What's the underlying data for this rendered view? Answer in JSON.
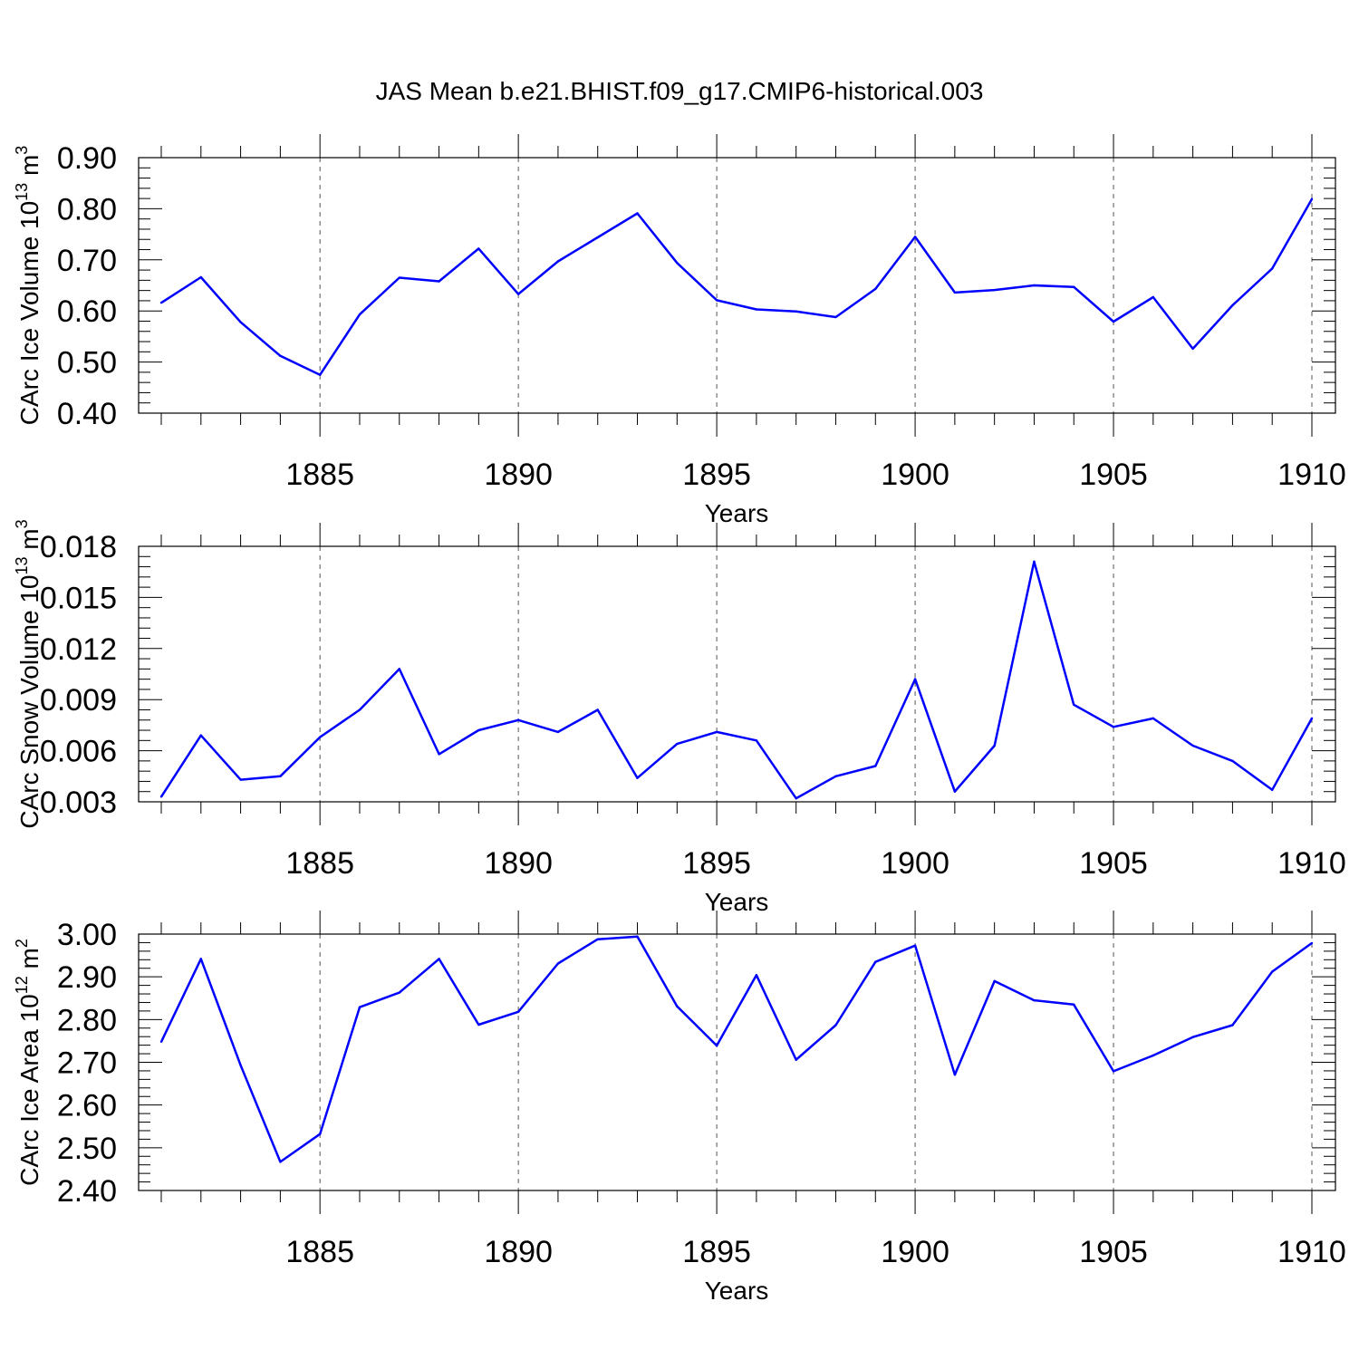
{
  "figure_title": "JAS Mean b.e21.BHIST.f09_g17.CMIP6-historical.003",
  "chart_data": [
    {
      "type": "line",
      "xlabel": "Years",
      "ylabel_parts": {
        "base": "CArc Ice Volume 10",
        "exp": "13",
        "unit": " m",
        "unit_exp": "3"
      },
      "xlim": [
        1881,
        1910
      ],
      "ylim": [
        0.4,
        0.9
      ],
      "yticks": [
        0.4,
        0.5,
        0.6,
        0.7,
        0.8,
        0.9
      ],
      "ytick_labels": [
        "0.40",
        "0.50",
        "0.60",
        "0.70",
        "0.80",
        "0.90"
      ],
      "xticks": [
        1885,
        1890,
        1895,
        1900,
        1905,
        1910
      ],
      "xtick_labels": [
        "1885",
        "1890",
        "1895",
        "1900",
        "1905",
        "1910"
      ],
      "grid": "vertical dashed at major x ticks",
      "line_color": "#0000ff",
      "x": [
        1881,
        1882,
        1883,
        1884,
        1885,
        1886,
        1887,
        1888,
        1889,
        1890,
        1891,
        1892,
        1893,
        1894,
        1895,
        1896,
        1897,
        1898,
        1899,
        1900,
        1901,
        1902,
        1903,
        1904,
        1905,
        1906,
        1907,
        1908,
        1909,
        1910
      ],
      "values": [
        0.616,
        0.666,
        0.578,
        0.512,
        0.475,
        0.593,
        0.665,
        0.658,
        0.722,
        0.633,
        0.697,
        0.744,
        0.791,
        0.694,
        0.621,
        0.603,
        0.599,
        0.588,
        0.643,
        0.745,
        0.636,
        0.641,
        0.65,
        0.647,
        0.579,
        0.627,
        0.526,
        0.611,
        0.683,
        0.819
      ]
    },
    {
      "type": "line",
      "xlabel": "Years",
      "ylabel_parts": {
        "base": "CArc Snow Volume 10",
        "exp": "13",
        "unit": " m",
        "unit_exp": "3"
      },
      "xlim": [
        1881,
        1910
      ],
      "ylim": [
        0.003,
        0.018
      ],
      "yticks": [
        0.003,
        0.006,
        0.009,
        0.012,
        0.015,
        0.018
      ],
      "ytick_labels": [
        "0.003",
        "0.006",
        "0.009",
        "0.012",
        "0.015",
        "0.018"
      ],
      "xticks": [
        1885,
        1890,
        1895,
        1900,
        1905,
        1910
      ],
      "xtick_labels": [
        "1885",
        "1890",
        "1895",
        "1900",
        "1905",
        "1910"
      ],
      "grid": "vertical dashed at major x ticks",
      "line_color": "#0000ff",
      "x": [
        1881,
        1882,
        1883,
        1884,
        1885,
        1886,
        1887,
        1888,
        1889,
        1890,
        1891,
        1892,
        1893,
        1894,
        1895,
        1896,
        1897,
        1898,
        1899,
        1900,
        1901,
        1902,
        1903,
        1904,
        1905,
        1906,
        1907,
        1908,
        1909,
        1910
      ],
      "values": [
        0.0033,
        0.0069,
        0.0043,
        0.0045,
        0.0068,
        0.0084,
        0.0108,
        0.0058,
        0.0072,
        0.0078,
        0.0071,
        0.0084,
        0.0044,
        0.0064,
        0.0071,
        0.0066,
        0.0032,
        0.0045,
        0.0051,
        0.0102,
        0.0036,
        0.0063,
        0.0171,
        0.0087,
        0.0074,
        0.0079,
        0.0063,
        0.0054,
        0.0037,
        0.0079
      ]
    },
    {
      "type": "line",
      "xlabel": "Years",
      "ylabel_parts": {
        "base": "CArc Ice Area 10",
        "exp": "12",
        "unit": " m",
        "unit_exp": "2"
      },
      "xlim": [
        1881,
        1910
      ],
      "ylim": [
        2.4,
        3.0
      ],
      "yticks": [
        2.4,
        2.5,
        2.6,
        2.7,
        2.8,
        2.9,
        3.0
      ],
      "ytick_labels": [
        "2.40",
        "2.50",
        "2.60",
        "2.70",
        "2.80",
        "2.90",
        "3.00"
      ],
      "xticks": [
        1885,
        1890,
        1895,
        1900,
        1905,
        1910
      ],
      "xtick_labels": [
        "1885",
        "1890",
        "1895",
        "1900",
        "1905",
        "1910"
      ],
      "grid": "vertical dashed at major x ticks",
      "line_color": "#0000ff",
      "x": [
        1881,
        1882,
        1883,
        1884,
        1885,
        1886,
        1887,
        1888,
        1889,
        1890,
        1891,
        1892,
        1893,
        1894,
        1895,
        1896,
        1897,
        1898,
        1899,
        1900,
        1901,
        1902,
        1903,
        1904,
        1905,
        1906,
        1907,
        1908,
        1909,
        1910
      ],
      "values": [
        2.748,
        2.942,
        2.693,
        2.467,
        2.532,
        2.829,
        2.863,
        2.942,
        2.788,
        2.818,
        2.931,
        2.988,
        2.994,
        2.831,
        2.739,
        2.904,
        2.706,
        2.787,
        2.935,
        2.973,
        2.671,
        2.89,
        2.845,
        2.835,
        2.679,
        2.716,
        2.759,
        2.787,
        2.912,
        2.979
      ]
    }
  ]
}
